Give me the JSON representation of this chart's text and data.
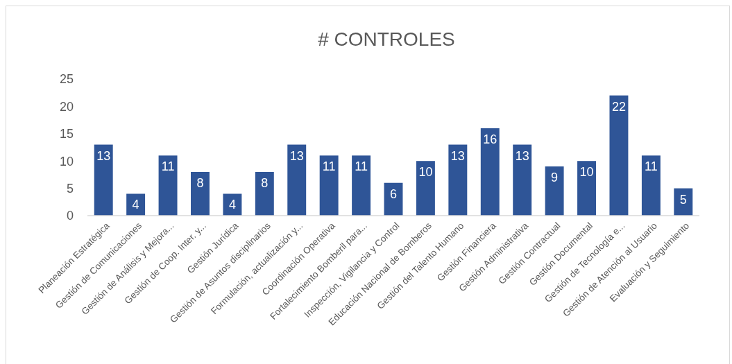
{
  "chart_data": {
    "type": "bar",
    "title": "# CONTROLES",
    "categories": [
      "Planeación Estratégica",
      "Gestión de Comunicaciones",
      "Gestión de Análisis y Mejora...",
      "Gestión de Coop. Inter. y...",
      "Gestión Jurídica",
      "Gestión de Asuntos disciplinarios",
      "Formulación, actualización y...",
      "Coordinación Operativa",
      "Fortalecimiento Bomberil para...",
      "Inspección, Vigilancia y Control",
      "Educación Nacional de Bomberos",
      "Gestión del Talento Humano",
      "Gestión Financiera",
      "Gestión Administrativa",
      "Gestión Contractual",
      "Gestión Documental",
      "Gestión de Tecnología e...",
      "Gestión de Atención al Usuario",
      "Evaluación y Seguimiento"
    ],
    "values": [
      13,
      4,
      11,
      8,
      4,
      8,
      13,
      11,
      11,
      6,
      10,
      13,
      16,
      13,
      9,
      10,
      22,
      11,
      5
    ],
    "color": "#2f5597",
    "ylim": [
      0,
      25
    ],
    "yticks": [
      0,
      5,
      10,
      15,
      20,
      25
    ],
    "grid": false,
    "data_labels": true
  }
}
